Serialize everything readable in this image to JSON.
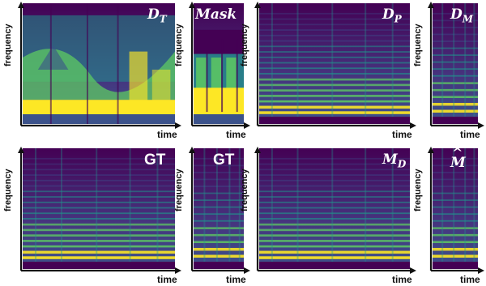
{
  "figure": {
    "axis_labels": {
      "y": "frequency",
      "x": "time"
    },
    "panels": [
      {
        "id": "dt",
        "title_main": "D",
        "title_sub": "T",
        "style": "serif",
        "palette": "dt",
        "hat": false
      },
      {
        "id": "mask",
        "title_main": "Mask",
        "title_sub": "",
        "style": "serif",
        "palette": "mask",
        "hat": false
      },
      {
        "id": "dp",
        "title_main": "D",
        "title_sub": "P",
        "style": "serif",
        "palette": "harm",
        "hat": false
      },
      {
        "id": "dm",
        "title_main": "D",
        "title_sub": "M",
        "style": "serif",
        "palette": "narrow",
        "hat": false
      },
      {
        "id": "gt1",
        "title_main": "GT",
        "title_sub": "",
        "style": "sans",
        "palette": "harm",
        "hat": false
      },
      {
        "id": "gt2",
        "title_main": "GT",
        "title_sub": "",
        "style": "sans",
        "palette": "narrow",
        "hat": false
      },
      {
        "id": "md",
        "title_main": "M",
        "title_sub": "D",
        "style": "serif",
        "palette": "harm",
        "hat": false
      },
      {
        "id": "mhat",
        "title_main": "M",
        "title_sub": "",
        "style": "serif",
        "palette": "narrow",
        "hat": true
      }
    ]
  },
  "colors": {
    "viridis_dark": "#440154",
    "viridis_blue": "#3b528b",
    "viridis_teal": "#21918c",
    "viridis_green": "#5ec962",
    "viridis_yellow": "#fde725",
    "axis": "#111111"
  }
}
